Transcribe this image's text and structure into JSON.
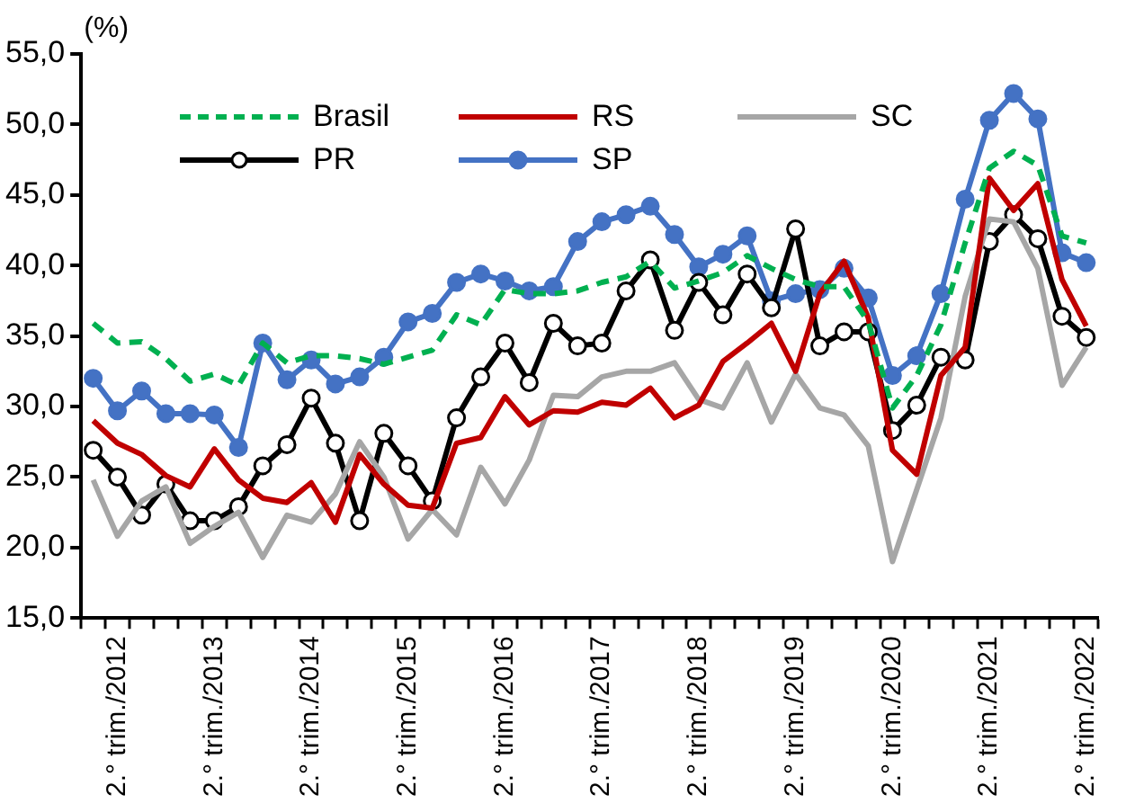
{
  "chart_data": {
    "type": "line",
    "ylabel": "(%)",
    "categories": [
      null,
      "2.° trim./2012",
      null,
      null,
      null,
      "2.° trim./2013",
      null,
      null,
      null,
      "2.° trim./2014",
      null,
      null,
      null,
      "2.° trim./2015",
      null,
      null,
      null,
      "2.° trim./2016",
      null,
      null,
      null,
      "2.° trim./2017",
      null,
      null,
      null,
      "2.° trim./2018",
      null,
      null,
      null,
      "2.° trim./2019",
      null,
      null,
      null,
      "2.° trim./2020",
      null,
      null,
      null,
      "2.° trim./2021",
      null,
      null,
      null,
      "2.° trim./2022"
    ],
    "series": [
      {
        "name": "Brasil",
        "color": "#00b050",
        "line_style": "dashed",
        "marker": "none",
        "values": [
          35.9,
          34.5,
          34.6,
          33.4,
          31.8,
          32.3,
          31.5,
          34.5,
          33.1,
          33.6,
          33.6,
          33.4,
          33.0,
          33.5,
          34.0,
          36.5,
          35.8,
          38.3,
          38.0,
          38.0,
          38.2,
          38.8,
          39.2,
          40.3,
          38.4,
          38.9,
          39.5,
          40.7,
          39.8,
          39.0,
          38.5,
          38.5,
          36.0,
          29.9,
          32.2,
          35.8,
          41.6,
          46.9,
          48.1,
          47.1,
          42.1,
          41.6
        ]
      },
      {
        "name": "RS",
        "color": "#c00000",
        "line_style": "solid",
        "marker": "none",
        "values": [
          29.0,
          27.4,
          26.6,
          25.1,
          24.3,
          27.0,
          24.8,
          23.5,
          23.2,
          24.6,
          21.8,
          26.6,
          24.5,
          23.0,
          22.8,
          27.4,
          27.8,
          30.7,
          28.7,
          29.7,
          29.6,
          30.3,
          30.1,
          31.3,
          29.2,
          30.1,
          33.2,
          34.5,
          35.9,
          32.5,
          38.0,
          40.3,
          36.3,
          26.9,
          25.2,
          32.2,
          34.2,
          46.2,
          43.9,
          45.8,
          39.0,
          35.7
        ]
      },
      {
        "name": "SC",
        "color": "#a6a6a6",
        "line_style": "solid",
        "marker": "none",
        "values": [
          24.8,
          20.8,
          23.3,
          24.3,
          20.3,
          21.5,
          22.5,
          19.3,
          22.3,
          21.8,
          23.8,
          27.5,
          25.0,
          20.6,
          22.7,
          20.9,
          25.7,
          23.1,
          26.2,
          30.8,
          30.7,
          32.1,
          32.5,
          32.5,
          33.1,
          30.5,
          29.9,
          33.1,
          28.9,
          32.3,
          29.9,
          29.4,
          27.2,
          19.0,
          24.1,
          29.2,
          37.8,
          43.3,
          43.1,
          39.8,
          31.5,
          34.2
        ]
      },
      {
        "name": "PR",
        "color": "#000000",
        "line_style": "solid",
        "marker": "circle",
        "values": [
          26.9,
          25.0,
          22.3,
          24.5,
          21.9,
          21.9,
          22.9,
          25.8,
          27.3,
          30.6,
          27.4,
          21.9,
          28.1,
          25.8,
          23.3,
          29.2,
          32.1,
          34.5,
          31.7,
          35.9,
          34.3,
          34.5,
          38.2,
          40.4,
          35.4,
          38.8,
          36.5,
          39.4,
          37.0,
          42.6,
          34.3,
          35.3,
          35.3,
          28.3,
          30.1,
          33.5,
          33.3,
          41.7,
          43.6,
          41.9,
          36.4,
          34.9
        ]
      },
      {
        "name": "SP",
        "color": "#4472c4",
        "line_style": "solid",
        "marker": "circle",
        "values": [
          32.0,
          29.7,
          31.1,
          29.5,
          29.5,
          29.4,
          27.1,
          34.5,
          31.9,
          33.3,
          31.6,
          32.1,
          33.5,
          36.0,
          36.6,
          38.8,
          39.4,
          38.9,
          38.2,
          38.5,
          41.7,
          43.1,
          43.6,
          44.2,
          42.2,
          39.9,
          40.8,
          42.1,
          37.5,
          38.0,
          38.3,
          39.8,
          37.7,
          32.2,
          33.6,
          38.0,
          44.7,
          50.3,
          52.2,
          50.4,
          40.9,
          40.2
        ]
      }
    ],
    "ylim": [
      15,
      55
    ],
    "yticks": [
      {
        "value": 15,
        "label": "15,0"
      },
      {
        "value": 20,
        "label": "20,0"
      },
      {
        "value": 25,
        "label": "25,0"
      },
      {
        "value": 30,
        "label": "30,0"
      },
      {
        "value": 35,
        "label": "35,0"
      },
      {
        "value": 40,
        "label": "40,0"
      },
      {
        "value": 45,
        "label": "45,0"
      },
      {
        "value": 50,
        "label": "50,0"
      },
      {
        "value": 55,
        "label": "55,0"
      }
    ],
    "grid": false,
    "legend": "top"
  }
}
